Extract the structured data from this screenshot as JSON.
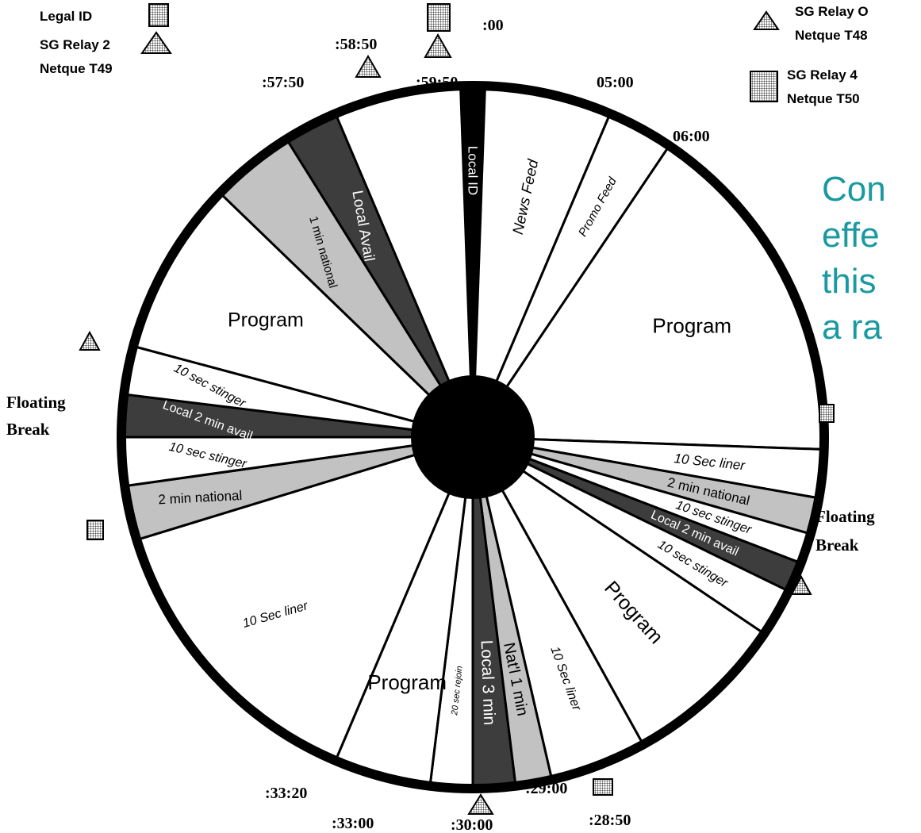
{
  "colors": {
    "black": "#000000",
    "dark": "#3d3d3d",
    "light": "#c2c2c2",
    "white": "#ffffff",
    "overlay_text": "#1a9aa0"
  },
  "icons": {
    "square": "grid-square-icon",
    "triangle": "triangle-relay-icon"
  },
  "legend": {
    "top_left": [
      "Legal ID",
      "SG Relay 2",
      "Netque T49"
    ],
    "top_right_1": [
      "SG Relay O",
      "Netque T48"
    ],
    "top_right_2": [
      "SG Relay 4",
      "Netque T50"
    ]
  },
  "times": {
    "t00": ":00",
    "t0500": "05:00",
    "t0600": "06:00",
    "t5750": ":57:50",
    "t5850": ":58:50",
    "t5950": ":59:50",
    "t3320": ":33:20",
    "t3300": ":33:00",
    "t3000": ":30:00",
    "t2900": ":29:00",
    "t2850": ":28:50"
  },
  "floating_break": {
    "left": [
      "Floating",
      "Break"
    ],
    "right": [
      "Floating",
      "Break"
    ]
  },
  "segments": [
    {
      "label": "Local ID",
      "fill": "black"
    },
    {
      "label": "News Feed",
      "fill": "white"
    },
    {
      "label": "Promo Feed",
      "fill": "white"
    },
    {
      "label": "Program",
      "fill": "white"
    },
    {
      "label": "10 Sec liner",
      "fill": "white"
    },
    {
      "label": "2 min national",
      "fill": "light"
    },
    {
      "label": "10 sec stinger",
      "fill": "white"
    },
    {
      "label": "Local 2 min avail",
      "fill": "dark"
    },
    {
      "label": "10 sec stinger",
      "fill": "white"
    },
    {
      "label": "Program",
      "fill": "white"
    },
    {
      "label": "10 Sec liner",
      "fill": "white"
    },
    {
      "label": "Nat'l 1 min",
      "fill": "light"
    },
    {
      "label": "Local 3 min",
      "fill": "dark"
    },
    {
      "label": "20 sec rejoin",
      "fill": "white"
    },
    {
      "label": "Program",
      "fill": "white"
    },
    {
      "label": "10 Sec liner",
      "fill": "white"
    },
    {
      "label": "2 min national",
      "fill": "light"
    },
    {
      "label": "10 sec stinger",
      "fill": "white"
    },
    {
      "label": "Local 2 min avail",
      "fill": "dark"
    },
    {
      "label": "10 sec stinger",
      "fill": "white"
    },
    {
      "label": "Program",
      "fill": "white"
    },
    {
      "label": "1 min national",
      "fill": "light"
    },
    {
      "label": "Local Avail",
      "fill": "dark"
    }
  ],
  "overlay_text": [
    "Con",
    "effe",
    "this",
    "a ra"
  ]
}
